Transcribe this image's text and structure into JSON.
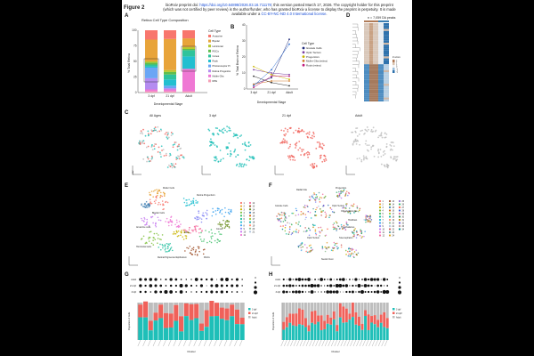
{
  "header": {
    "figure_label": "Figure 2",
    "line1": "bioRxiv preprint doi: ",
    "doi_link": "https://doi.org/10.64898/2026.03.16.711178",
    "line1b": "; this version posted March 17, 2026. The copyright holder for this preprint",
    "line2": "(which was not certified by peer review) is the author/funder, who has granted bioRxiv a license to display the preprint in perpetuity. It is made",
    "line3a": "available under a",
    "license_link": "CC-BY-NC-ND 4.0 International license",
    "line3b": "."
  },
  "panels": [
    "A",
    "B",
    "C",
    "D",
    "E",
    "F",
    "G",
    "H"
  ],
  "panelA": {
    "title": "Retina Cell Type Composition",
    "ylabel": "% Total Retina",
    "xlabel": "Developmental Stage",
    "yticks": [
      "0",
      "25",
      "50",
      "75",
      "100"
    ],
    "legend_title": "Cell Type",
    "legend": [
      {
        "name": "Amacrine",
        "color": "#f8766d"
      },
      {
        "name": "Bipolar",
        "color": "#e8a43a"
      },
      {
        "name": "Horizontal",
        "color": "#b7c82f"
      },
      {
        "name": "RGCs",
        "color": "#5fbd4c"
      },
      {
        "name": "Cones",
        "color": "#2fc39b"
      },
      {
        "name": "Rods",
        "color": "#22bfd0"
      },
      {
        "name": "Photoreceptor Precursor",
        "color": "#6aa6f5"
      },
      {
        "name": "Retina Progenitor",
        "color": "#b48cf0"
      },
      {
        "name": "Muller Glia",
        "color": "#ef78d4"
      },
      {
        "name": "RPE",
        "color": "#f59fb5"
      }
    ]
  },
  "chart_data": [
    {
      "type": "bar",
      "title": "Retina Cell Type Composition",
      "xlabel": "Developmental Stage",
      "ylabel": "% Total Retina",
      "ylim": [
        0,
        100
      ],
      "categories": [
        "3 dpf",
        "21 dpf",
        "Adult"
      ],
      "series": [
        {
          "name": "RPE",
          "values": [
            2,
            2,
            2
          ]
        },
        {
          "name": "Muller Glia",
          "values": [
            3,
            3,
            36
          ]
        },
        {
          "name": "Retina Progenitor",
          "values": [
            18,
            2,
            0
          ]
        },
        {
          "name": "Photoreceptor Precursor",
          "values": [
            17,
            4,
            0
          ]
        },
        {
          "name": "Rods",
          "values": [
            2,
            10,
            20
          ]
        },
        {
          "name": "Cones",
          "values": [
            3,
            8,
            10
          ]
        },
        {
          "name": "RGCs",
          "values": [
            3,
            4,
            2
          ]
        },
        {
          "name": "Horizontal",
          "values": [
            2,
            3,
            3
          ]
        },
        {
          "name": "Bipolar",
          "values": [
            35,
            50,
            14
          ]
        },
        {
          "name": "Amacrine",
          "values": [
            15,
            14,
            13
          ]
        }
      ]
    },
    {
      "type": "line",
      "xlabel": "Developmental Stage",
      "ylabel": "% Total Brain or Retina",
      "ylim": [
        0,
        40
      ],
      "yticks": [
        "0",
        "10",
        "20",
        "30",
        "40"
      ],
      "legend_title": "Cell Type",
      "categories": [
        "3 dpf",
        "21 dpf",
        "Adult"
      ],
      "series": [
        {
          "name": "Granule Cells",
          "color": "#1f2a7a",
          "values": [
            3,
            7,
            31
          ]
        },
        {
          "name": "Optic Tectum",
          "color": "#7b3fa0",
          "values": [
            12,
            10,
            9
          ]
        },
        {
          "name": "Progenitors",
          "color": "#c9b400",
          "values": [
            14,
            9,
            6
          ]
        },
        {
          "name": "Muller Glia (retina)",
          "color": "#d07a2a",
          "values": [
            3,
            5,
            5
          ]
        },
        {
          "name": "Rods (retina)",
          "color": "#c0187a",
          "values": [
            1,
            8,
            8
          ]
        },
        {
          "name": "Neural Crest",
          "color": "#2d2d2d",
          "values": [
            8,
            4,
            2
          ]
        },
        {
          "name": "Microglia",
          "color": "#2a6bd1",
          "values": [
            2,
            12,
            28
          ]
        }
      ]
    }
  ],
  "panelB_legend_visible": [
    "Granule Cells",
    "Optic Tectum",
    "Progenitors",
    "Muller Glia (retina)",
    "Rods (retina)"
  ],
  "panelC": {
    "titles": [
      "All Ages",
      "3 dpf",
      "21 dpf",
      "Adult"
    ],
    "axis_label": "UMAP"
  },
  "panelD": {
    "title": "n = 7,059 DA peaks",
    "legend_title": "Z-score",
    "ticks": [
      "2",
      "1",
      "0",
      "-1",
      "-2"
    ]
  },
  "panelE": {
    "labels": [
      "Muller Cells",
      "Retina Progenitors",
      "Bipolar Cells",
      "Amacrine cells",
      "Rods",
      "Cones",
      "Horizontal cells",
      "Retinal Pigmented Epithelium",
      "RGCs"
    ],
    "clusters": [
      "1",
      "2",
      "3",
      "4",
      "5",
      "6",
      "7",
      "8",
      "9",
      "10",
      "11",
      "12",
      "13",
      "14",
      "15",
      "16",
      "17",
      "18",
      "19",
      "20",
      "21"
    ]
  },
  "panelF": {
    "labels": [
      "Radial Glia",
      "Progenitors",
      "Granule Cells",
      "Optic Tectum",
      "Hindbrain",
      "Oligodendrocytes",
      "Hypothalamus",
      "Optic Tectum",
      "Telencephalon",
      "Neural Crest"
    ],
    "clusters": [
      "1",
      "2",
      "3",
      "4",
      "5",
      "6",
      "7",
      "8",
      "9",
      "10",
      "11",
      "12",
      "13",
      "14",
      "15",
      "16",
      "17",
      "18",
      "19",
      "20",
      "21",
      "22",
      "23",
      "24",
      "25",
      "26",
      "27",
      "28",
      "29",
      "30",
      "31",
      "32",
      "33",
      "34"
    ]
  },
  "panelG": {
    "xlabel": "Cluster",
    "ylabel": "Proportion of Cells",
    "rows": [
      "Adult",
      "21 dpf",
      "3 dpf"
    ],
    "legend": [
      "3 dpf",
      "21 dpf",
      "Adult"
    ]
  },
  "panelH": {
    "xlabel": "Cluster",
    "ylabel": "Proportion of Cells",
    "rows": [
      "Adult",
      "21 dpf",
      "3 dpf"
    ],
    "legend": [
      "3 dpf",
      "21 dpf",
      "Adult"
    ]
  },
  "colors": {
    "teal": "#1fbfb8",
    "salmon": "#f0615a",
    "grey": "#bdbdbd",
    "ctrl_brown": "#b07b58",
    "ctrl_blue": "#3d7fb3"
  }
}
